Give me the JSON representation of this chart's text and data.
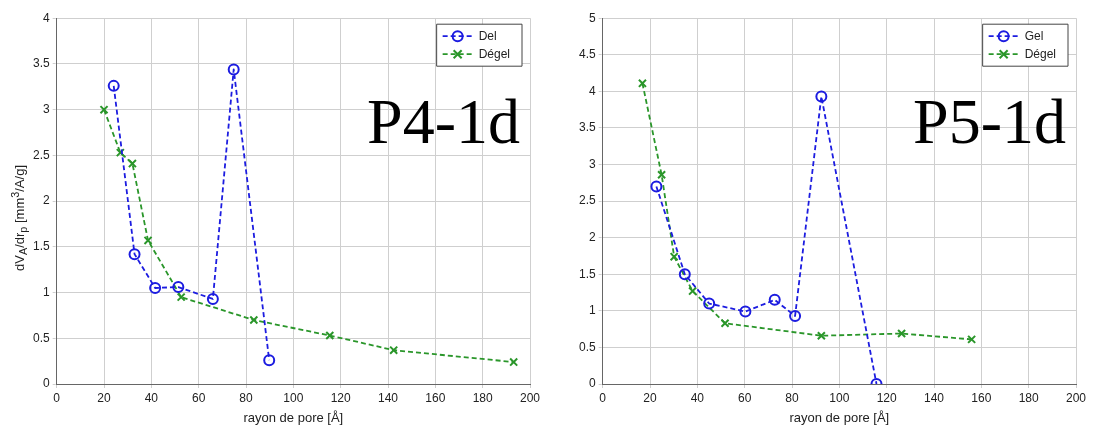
{
  "chart_data": [
    {
      "type": "line",
      "annotations": [
        "P4-1d"
      ],
      "xlabel": "rayon de pore [Å]",
      "ylabel": "dV$_{A}$/dr$_{p}$ [mm$^{3}$/A/g]",
      "xlim": [
        0,
        200
      ],
      "xticks": [
        0,
        20,
        40,
        60,
        80,
        100,
        120,
        140,
        160,
        180,
        200
      ],
      "ylim": [
        0,
        4
      ],
      "yticks": [
        0,
        0.5,
        1,
        1.5,
        2,
        2.5,
        3,
        3.5,
        4
      ],
      "grid": true,
      "legend": "top right",
      "series": [
        {
          "name": "Del",
          "color": "#1c1ce0",
          "marker": "circle",
          "line_style": "dashed",
          "x": [
            24.1,
            32.9,
            41.6,
            51.4,
            66,
            74.8,
            89.8
          ],
          "values": [
            3.26,
            1.42,
            1.05,
            1.06,
            0.93,
            3.44,
            0.26
          ]
        },
        {
          "name": "Dégel",
          "color": "#2a962a",
          "marker": "cross",
          "line_style": "dashed",
          "x": [
            20,
            26.9,
            32,
            38.6,
            52.6,
            83.3,
            115.4,
            142.4,
            193.1
          ],
          "values": [
            3.0,
            2.53,
            2.41,
            1.57,
            0.95,
            0.7,
            0.53,
            0.37,
            0.24
          ]
        }
      ]
    },
    {
      "type": "line",
      "annotations": [
        "P5-1d"
      ],
      "xlabel": "rayon de pore [Å]",
      "xlim": [
        0,
        200
      ],
      "xticks": [
        0,
        20,
        40,
        60,
        80,
        100,
        120,
        140,
        160,
        180,
        200
      ],
      "ylim": [
        0,
        5
      ],
      "yticks": [
        0,
        0.5,
        1,
        1.5,
        2,
        2.5,
        3,
        3.5,
        4,
        4.5,
        5
      ],
      "grid": true,
      "legend": "top right",
      "series": [
        {
          "name": "Gel",
          "color": "#1c1ce0",
          "marker": "circle",
          "line_style": "dashed",
          "x": [
            22.7,
            34.7,
            45,
            60.3,
            72.7,
            81.3,
            92.4,
            115.7
          ],
          "values": [
            2.7,
            1.5,
            1.1,
            0.99,
            1.15,
            0.93,
            3.93,
            0
          ]
        },
        {
          "name": "Dégel",
          "color": "#2a962a",
          "marker": "cross",
          "line_style": "dashed",
          "x": [
            16.8,
            24.9,
            30.2,
            38,
            51.7,
            92.4,
            126.3,
            155.9
          ],
          "values": [
            4.11,
            2.86,
            1.74,
            1.27,
            0.83,
            0.66,
            0.69,
            0.61
          ]
        }
      ]
    }
  ]
}
